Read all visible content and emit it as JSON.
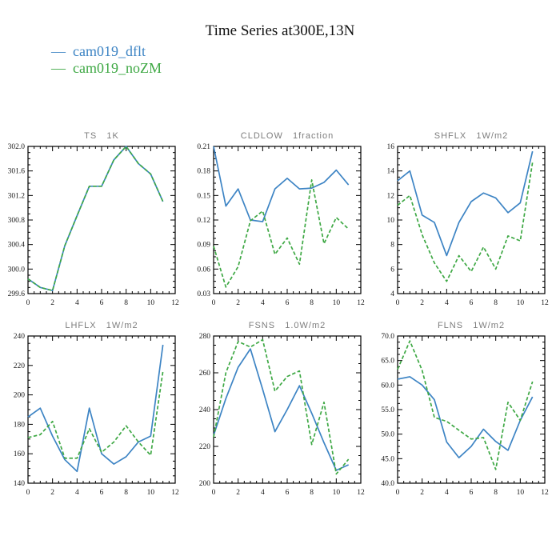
{
  "page_title": "Time Series at300E,13N",
  "colors": {
    "dflt": "#3d84c4",
    "noZM": "#3ea844",
    "axis": "#000000",
    "subplot_title": "#7d7d7d"
  },
  "legend": {
    "items": [
      {
        "swatch": "—",
        "label": "cam019_dflt",
        "color": "#3d84c4"
      },
      {
        "swatch": "—",
        "label": "cam019_noZM",
        "color": "#3ea844"
      }
    ]
  },
  "chart_data": [
    {
      "type": "line",
      "title": "TS   1K",
      "x": [
        0,
        1,
        2,
        3,
        4,
        5,
        6,
        7,
        8,
        9,
        10,
        11
      ],
      "xlim": [
        0,
        12
      ],
      "xticks": [
        0,
        2,
        4,
        6,
        8,
        10,
        12
      ],
      "xtick_labels": [
        "0",
        "2",
        "4",
        "6",
        "8",
        "10",
        "12"
      ],
      "xminor": 0.5,
      "ylim": [
        299.6,
        302.0
      ],
      "yticks": [
        299.6,
        300.0,
        300.4,
        300.8,
        301.2,
        301.6,
        302.0
      ],
      "ytick_labels": [
        "299.6",
        "300.0",
        "300.4",
        "300.8",
        "301.2",
        "301.6",
        "302.0"
      ],
      "yminor": 0.1,
      "grid": false,
      "series": [
        {
          "name": "cam019_dflt",
          "style": "solid",
          "color": "#3d84c4",
          "values": [
            299.84,
            299.7,
            299.65,
            300.38,
            300.87,
            301.35,
            301.35,
            301.78,
            302.0,
            301.72,
            301.55,
            301.1
          ]
        },
        {
          "name": "cam019_noZM",
          "style": "dashed",
          "color": "#3ea844",
          "values": [
            299.84,
            299.7,
            299.65,
            300.38,
            300.87,
            301.35,
            301.35,
            301.78,
            302.0,
            301.72,
            301.55,
            301.1
          ]
        }
      ]
    },
    {
      "type": "line",
      "title": "CLDLOW   1fraction",
      "x": [
        0,
        1,
        2,
        3,
        4,
        5,
        6,
        7,
        8,
        9,
        10,
        11
      ],
      "xlim": [
        0,
        12
      ],
      "xticks": [
        0,
        2,
        4,
        6,
        8,
        10,
        12
      ],
      "xtick_labels": [
        "0",
        "2",
        "4",
        "6",
        "8",
        "10",
        "12"
      ],
      "xminor": 0.5,
      "ylim": [
        0.03,
        0.21
      ],
      "yticks": [
        0.03,
        0.06,
        0.09,
        0.12,
        0.15,
        0.18,
        0.21
      ],
      "ytick_labels": [
        "0.03",
        "0.06",
        "0.09",
        "0.12",
        "0.15",
        "0.18",
        "0.21"
      ],
      "yminor": 0.0075,
      "grid": false,
      "series": [
        {
          "name": "cam019_dflt",
          "style": "solid",
          "color": "#3d84c4",
          "values": [
            0.21,
            0.137,
            0.158,
            0.12,
            0.118,
            0.158,
            0.171,
            0.158,
            0.159,
            0.166,
            0.181,
            0.163
          ]
        },
        {
          "name": "cam019_noZM",
          "style": "dashed",
          "color": "#3ea844",
          "values": [
            0.088,
            0.038,
            0.063,
            0.119,
            0.131,
            0.078,
            0.098,
            0.066,
            0.169,
            0.091,
            0.123,
            0.109
          ]
        }
      ]
    },
    {
      "type": "line",
      "title": "SHFLX   1W/m2",
      "x": [
        0,
        1,
        2,
        3,
        4,
        5,
        6,
        7,
        8,
        9,
        10,
        11
      ],
      "xlim": [
        0,
        12
      ],
      "xticks": [
        0,
        2,
        4,
        6,
        8,
        10,
        12
      ],
      "xtick_labels": [
        "0",
        "2",
        "4",
        "6",
        "8",
        "10",
        "12"
      ],
      "xminor": 0.5,
      "ylim": [
        4,
        16
      ],
      "yticks": [
        4,
        6,
        8,
        10,
        12,
        14,
        16
      ],
      "ytick_labels": [
        "4",
        "6",
        "8",
        "10",
        "12",
        "14",
        "16"
      ],
      "yminor": 0.5,
      "grid": false,
      "series": [
        {
          "name": "cam019_dflt",
          "style": "solid",
          "color": "#3d84c4",
          "values": [
            13.2,
            14.0,
            10.4,
            9.8,
            7.1,
            9.8,
            11.5,
            12.2,
            11.8,
            10.6,
            11.4,
            15.6
          ]
        },
        {
          "name": "cam019_noZM",
          "style": "dashed",
          "color": "#3ea844",
          "values": [
            11.2,
            12.0,
            8.8,
            6.5,
            5.0,
            7.1,
            5.8,
            7.8,
            6.0,
            8.7,
            8.3,
            14.7
          ]
        }
      ]
    },
    {
      "type": "line",
      "title": "LHFLX   1W/m2",
      "x": [
        0,
        1,
        2,
        3,
        4,
        5,
        6,
        7,
        8,
        9,
        10,
        11
      ],
      "xlim": [
        0,
        12
      ],
      "xticks": [
        0,
        2,
        4,
        6,
        8,
        10,
        12
      ],
      "xtick_labels": [
        "0",
        "2",
        "4",
        "6",
        "8",
        "10",
        "12"
      ],
      "xminor": 0.5,
      "ylim": [
        140,
        240
      ],
      "yticks": [
        140,
        160,
        180,
        200,
        220,
        240
      ],
      "ytick_labels": [
        "140",
        "160",
        "180",
        "200",
        "220",
        "240"
      ],
      "yminor": 5,
      "grid": false,
      "series": [
        {
          "name": "cam019_dflt",
          "style": "solid",
          "color": "#3d84c4",
          "values": [
            185,
            191,
            172,
            156,
            148,
            191,
            160,
            153,
            158,
            168,
            172,
            234
          ]
        },
        {
          "name": "cam019_noZM",
          "style": "dashed",
          "color": "#3ea844",
          "values": [
            171,
            173,
            182,
            157,
            157,
            177,
            161,
            168,
            179,
            168,
            159,
            216
          ]
        }
      ]
    },
    {
      "type": "line",
      "title": "FSNS   1.0W/m2",
      "x": [
        0,
        1,
        2,
        3,
        4,
        5,
        6,
        7,
        8,
        9,
        10,
        11
      ],
      "xlim": [
        0,
        12
      ],
      "xticks": [
        0,
        2,
        4,
        6,
        8,
        10,
        12
      ],
      "xtick_labels": [
        "0",
        "2",
        "4",
        "6",
        "8",
        "10",
        "12"
      ],
      "xminor": 0.5,
      "ylim": [
        200,
        280
      ],
      "yticks": [
        200,
        220,
        240,
        260,
        280
      ],
      "ytick_labels": [
        "200",
        "220",
        "240",
        "260",
        "280"
      ],
      "yminor": 5,
      "grid": false,
      "series": [
        {
          "name": "cam019_dflt",
          "style": "solid",
          "color": "#3d84c4",
          "values": [
            226,
            246,
            263,
            273,
            251,
            228,
            240,
            253,
            238,
            222,
            207,
            210
          ]
        },
        {
          "name": "cam019_noZM",
          "style": "dashed",
          "color": "#3ea844",
          "values": [
            225,
            260,
            277,
            274,
            278,
            250,
            258,
            261,
            221,
            244,
            205,
            213
          ]
        }
      ]
    },
    {
      "type": "line",
      "title": "FLNS   1W/m2",
      "x": [
        0,
        1,
        2,
        3,
        4,
        5,
        6,
        7,
        8,
        9,
        10,
        11
      ],
      "xlim": [
        0,
        12
      ],
      "xticks": [
        0,
        2,
        4,
        6,
        8,
        10,
        12
      ],
      "xtick_labels": [
        "0",
        "2",
        "4",
        "6",
        "8",
        "10",
        "12"
      ],
      "xminor": 0.5,
      "ylim": [
        40.0,
        70.0
      ],
      "yticks": [
        40.0,
        45.0,
        50.0,
        55.0,
        60.0,
        65.0,
        70.0
      ],
      "ytick_labels": [
        "40.0",
        "45.0",
        "50.0",
        "55.0",
        "60.0",
        "65.0",
        "70.0"
      ],
      "yminor": 1.25,
      "grid": false,
      "series": [
        {
          "name": "cam019_dflt",
          "style": "solid",
          "color": "#3d84c4",
          "values": [
            61.2,
            61.7,
            60.0,
            57.0,
            48.4,
            45.2,
            47.5,
            51.0,
            48.5,
            46.7,
            52.8,
            57.6
          ]
        },
        {
          "name": "cam019_noZM",
          "style": "dashed",
          "color": "#3ea844",
          "values": [
            63.2,
            69.0,
            63.0,
            53.4,
            52.6,
            50.8,
            49.0,
            49.3,
            42.8,
            56.5,
            52.8,
            60.7
          ]
        }
      ]
    }
  ]
}
